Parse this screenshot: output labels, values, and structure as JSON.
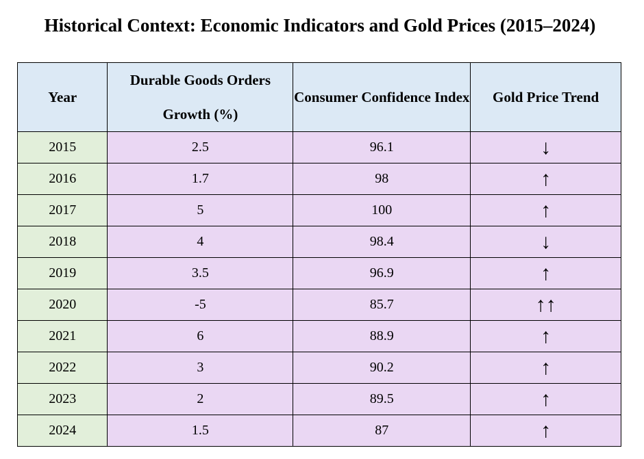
{
  "title": "Historical Context: Economic Indicators and Gold Prices (2015–2024)",
  "colors": {
    "header_bg": "#dce9f5",
    "year_bg": "#e2efda",
    "data_bg": "#ead7f3",
    "border": "#000000"
  },
  "table": {
    "headers": [
      "Year",
      "Durable Goods Orders Growth (%)",
      "Consumer Confidence Index",
      "Gold Price Trend"
    ],
    "rows": [
      {
        "year": "2015",
        "durable": "2.5",
        "confidence": "96.1",
        "gold": "↓"
      },
      {
        "year": "2016",
        "durable": "1.7",
        "confidence": "98",
        "gold": "↑"
      },
      {
        "year": "2017",
        "durable": "5",
        "confidence": "100",
        "gold": "↑"
      },
      {
        "year": "2018",
        "durable": "4",
        "confidence": "98.4",
        "gold": "↓"
      },
      {
        "year": "2019",
        "durable": "3.5",
        "confidence": "96.9",
        "gold": "↑"
      },
      {
        "year": "2020",
        "durable": "-5",
        "confidence": "85.7",
        "gold": "↑↑"
      },
      {
        "year": "2021",
        "durable": "6",
        "confidence": "88.9",
        "gold": "↑"
      },
      {
        "year": "2022",
        "durable": "3",
        "confidence": "90.2",
        "gold": "↑"
      },
      {
        "year": "2023",
        "durable": "2",
        "confidence": "89.5",
        "gold": "↑"
      },
      {
        "year": "2024",
        "durable": "1.5",
        "confidence": "87",
        "gold": "↑"
      }
    ]
  }
}
